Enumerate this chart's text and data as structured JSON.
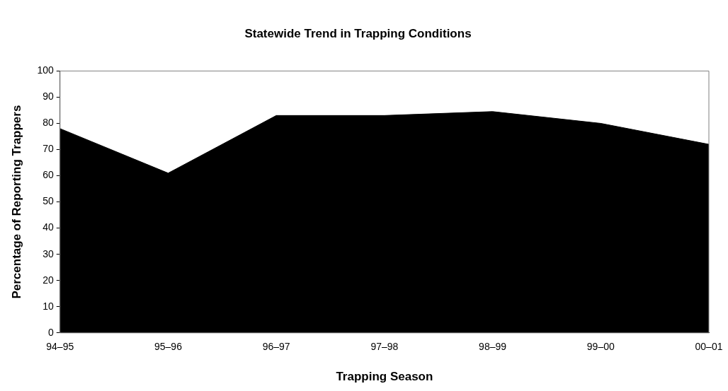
{
  "chart_data": {
    "type": "area",
    "title": "Statewide Trend in Trapping Conditions",
    "xlabel": "Trapping Season",
    "ylabel": "Percentage of Reporting Trappers",
    "categories": [
      "94–95",
      "95–96",
      "96–97",
      "97–98",
      "98–99",
      "99–00",
      "00–01"
    ],
    "values": [
      78,
      61,
      83,
      83,
      84.5,
      80,
      72
    ],
    "color": "#000000",
    "ylim": [
      0,
      100
    ],
    "yticks": [
      0,
      10,
      20,
      30,
      40,
      50,
      60,
      70,
      80,
      90,
      100
    ],
    "grid": false,
    "legend": false
  }
}
